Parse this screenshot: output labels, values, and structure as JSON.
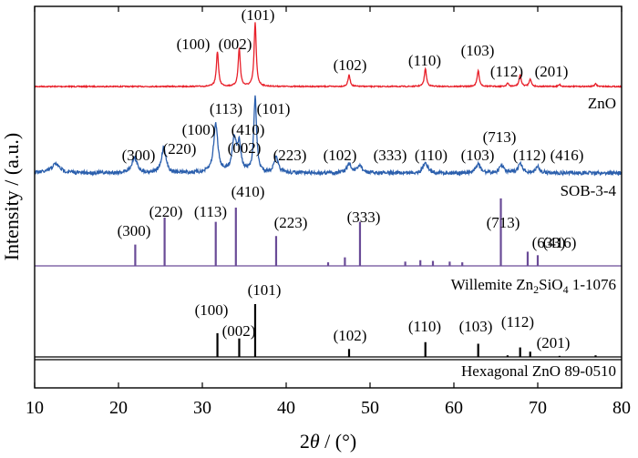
{
  "chart_data": {
    "type": "line",
    "xlabel": "2θ / (°)",
    "ylabel": "Intensity / (a.u.)",
    "xlim": [
      10,
      80
    ],
    "xticks": [
      10,
      20,
      30,
      40,
      50,
      60,
      70,
      80
    ],
    "grid": false,
    "series": [
      {
        "name": "ZnO",
        "color": "#e8202a",
        "kind": "pattern",
        "peaks": [
          {
            "x": 31.8,
            "h": 0.55,
            "w": 0.15
          },
          {
            "x": 34.4,
            "h": 0.6,
            "w": 0.15
          },
          {
            "x": 36.3,
            "h": 1.0,
            "w": 0.15
          },
          {
            "x": 47.5,
            "h": 0.18,
            "w": 0.15
          },
          {
            "x": 56.6,
            "h": 0.28,
            "w": 0.15
          },
          {
            "x": 62.9,
            "h": 0.25,
            "w": 0.15
          },
          {
            "x": 66.4,
            "h": 0.05,
            "w": 0.15
          },
          {
            "x": 67.9,
            "h": 0.18,
            "w": 0.15
          },
          {
            "x": 69.1,
            "h": 0.12,
            "w": 0.15
          },
          {
            "x": 72.6,
            "h": 0.03,
            "w": 0.15
          },
          {
            "x": 76.9,
            "h": 0.04,
            "w": 0.15
          }
        ],
        "annotations": [
          {
            "label": "(100)",
            "x": 31.8
          },
          {
            "label": "(002)",
            "x": 34.4
          },
          {
            "label": "(101)",
            "x": 36.3
          },
          {
            "label": "(102)",
            "x": 47.5
          },
          {
            "label": "(110)",
            "x": 56.6
          },
          {
            "label": "(103)",
            "x": 62.9
          },
          {
            "label": "(112)",
            "x": 67.9
          },
          {
            "label": "(201)",
            "x": 69.1
          }
        ]
      },
      {
        "name": "SOB-3-4",
        "color": "#2b5fad",
        "kind": "pattern",
        "peaks": [
          {
            "x": 12.5,
            "h": 0.12,
            "w": 0.6
          },
          {
            "x": 21.9,
            "h": 0.2,
            "w": 0.4
          },
          {
            "x": 25.4,
            "h": 0.35,
            "w": 0.3
          },
          {
            "x": 31.6,
            "h": 0.65,
            "w": 0.3
          },
          {
            "x": 33.8,
            "h": 0.45,
            "w": 0.3
          },
          {
            "x": 34.4,
            "h": 0.35,
            "w": 0.25
          },
          {
            "x": 36.3,
            "h": 1.0,
            "w": 0.2
          },
          {
            "x": 38.8,
            "h": 0.2,
            "w": 0.3
          },
          {
            "x": 47.5,
            "h": 0.12,
            "w": 0.3
          },
          {
            "x": 48.8,
            "h": 0.1,
            "w": 0.3
          },
          {
            "x": 56.6,
            "h": 0.15,
            "w": 0.3
          },
          {
            "x": 62.9,
            "h": 0.12,
            "w": 0.3
          },
          {
            "x": 65.7,
            "h": 0.1,
            "w": 0.3
          },
          {
            "x": 67.9,
            "h": 0.12,
            "w": 0.3
          },
          {
            "x": 70.0,
            "h": 0.08,
            "w": 0.3
          }
        ],
        "annotations": [
          {
            "label": "(300)",
            "x": 21.9
          },
          {
            "label": "(220)",
            "x": 25.4
          },
          {
            "label": "(100)",
            "x": 31.6
          },
          {
            "label": "(113)",
            "x": 31.6
          },
          {
            "label": "(410)",
            "x": 33.8
          },
          {
            "label": "(002)",
            "x": 34.4
          },
          {
            "label": "(101)",
            "x": 36.3
          },
          {
            "label": "(223)",
            "x": 38.8
          },
          {
            "label": "(102)",
            "x": 47.5
          },
          {
            "label": "(333)",
            "x": 48.8
          },
          {
            "label": "(110)",
            "x": 56.6
          },
          {
            "label": "(103)",
            "x": 62.9
          },
          {
            "label": "(713)",
            "x": 65.7
          },
          {
            "label": "(112)",
            "x": 67.9
          },
          {
            "label": "(416)",
            "x": 70.0
          }
        ]
      },
      {
        "name": "Willemite Zn₂SiO₄ 1-1076",
        "color": "#6a4b97",
        "kind": "sticks",
        "peaks": [
          {
            "x": 22.0,
            "h": 0.3
          },
          {
            "x": 25.5,
            "h": 0.68
          },
          {
            "x": 31.6,
            "h": 0.62
          },
          {
            "x": 34.0,
            "h": 0.82
          },
          {
            "x": 38.8,
            "h": 0.42
          },
          {
            "x": 45.0,
            "h": 0.05
          },
          {
            "x": 47.0,
            "h": 0.12
          },
          {
            "x": 48.8,
            "h": 0.62
          },
          {
            "x": 54.2,
            "h": 0.06
          },
          {
            "x": 56.0,
            "h": 0.08
          },
          {
            "x": 57.5,
            "h": 0.07
          },
          {
            "x": 59.5,
            "h": 0.06
          },
          {
            "x": 61.0,
            "h": 0.05
          },
          {
            "x": 65.6,
            "h": 0.95
          },
          {
            "x": 68.8,
            "h": 0.2
          },
          {
            "x": 70.0,
            "h": 0.15
          }
        ],
        "annotations": [
          {
            "label": "(300)",
            "x": 22.0
          },
          {
            "label": "(220)",
            "x": 25.5
          },
          {
            "label": "(113)",
            "x": 31.6
          },
          {
            "label": "(410)",
            "x": 34.0
          },
          {
            "label": "(223)",
            "x": 38.8
          },
          {
            "label": "(333)",
            "x": 48.8
          },
          {
            "label": "(713)",
            "x": 65.6
          },
          {
            "label": "(633)",
            "x": 68.8
          },
          {
            "label": "(416)",
            "x": 70.0
          }
        ]
      },
      {
        "name": "Hexagonal ZnO 89-0510",
        "color": "#000000",
        "kind": "sticks",
        "peaks": [
          {
            "x": 31.8,
            "h": 0.45
          },
          {
            "x": 34.4,
            "h": 0.35
          },
          {
            "x": 36.3,
            "h": 1.0
          },
          {
            "x": 47.5,
            "h": 0.15
          },
          {
            "x": 56.6,
            "h": 0.28
          },
          {
            "x": 62.9,
            "h": 0.25
          },
          {
            "x": 66.4,
            "h": 0.03
          },
          {
            "x": 67.9,
            "h": 0.18
          },
          {
            "x": 69.1,
            "h": 0.1
          },
          {
            "x": 72.6,
            "h": 0.02
          },
          {
            "x": 76.9,
            "h": 0.03
          }
        ],
        "annotations": [
          {
            "label": "(100)",
            "x": 31.8
          },
          {
            "label": "(002)",
            "x": 34.4
          },
          {
            "label": "(101)",
            "x": 36.3
          },
          {
            "label": "(102)",
            "x": 47.5
          },
          {
            "label": "(110)",
            "x": 56.6
          },
          {
            "label": "(103)",
            "x": 62.9
          },
          {
            "label": "(112)",
            "x": 67.9
          },
          {
            "label": "(201)",
            "x": 69.1
          }
        ]
      }
    ]
  }
}
